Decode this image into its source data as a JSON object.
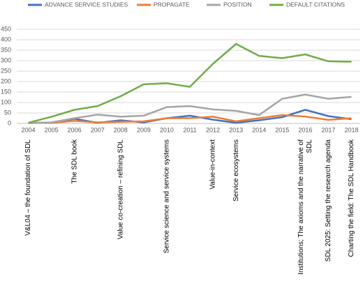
{
  "chart_data": {
    "type": "line",
    "categories": [
      "2004",
      "2005",
      "2006",
      "2007",
      "2008",
      "2009",
      "2010",
      "2011",
      "2012",
      "2013",
      "2014",
      "2015",
      "2016",
      "2017",
      "2018"
    ],
    "series": [
      {
        "name": "ADVANCE SERVICE STUDIES",
        "color": "#4472c4",
        "values": [
          2,
          3,
          22,
          3,
          15,
          5,
          25,
          37,
          18,
          3,
          15,
          30,
          65,
          35,
          20
        ]
      },
      {
        "name": "PROPAGATE",
        "color": "#ed7d31",
        "values": [
          2,
          3,
          12,
          5,
          8,
          10,
          25,
          25,
          32,
          10,
          25,
          40,
          33,
          17,
          25
        ]
      },
      {
        "name": "POSITION",
        "color": "#a5a5a5",
        "values": [
          3,
          5,
          25,
          42,
          32,
          37,
          78,
          83,
          67,
          60,
          40,
          118,
          138,
          118,
          127
        ]
      },
      {
        "name": "DEFAULT CITATIONS",
        "color": "#70ad47",
        "values": [
          3,
          32,
          65,
          83,
          130,
          187,
          192,
          175,
          285,
          380,
          323,
          312,
          330,
          297,
          295
        ]
      }
    ],
    "ylim": [
      0,
      450
    ],
    "yticks": [
      0,
      50,
      100,
      150,
      200,
      250,
      300,
      350,
      400,
      450
    ],
    "grid": true,
    "legend": "top",
    "annotations": [
      {
        "at": "2004",
        "lines": [
          "V&L04 – the foundation of SDL"
        ]
      },
      {
        "at": "2006",
        "lines": [
          "The SDL book"
        ]
      },
      {
        "at": "2008",
        "lines": [
          "Value co-creation – refining SDL"
        ]
      },
      {
        "at": "2010",
        "lines": [
          "Service science and service systems"
        ]
      },
      {
        "at": "2012",
        "lines": [
          "Value-in-context"
        ]
      },
      {
        "at": "2013",
        "lines": [
          "Service ecosystems"
        ]
      },
      {
        "at": "2016",
        "lines": [
          "Institutions; The axioms and the narrative of",
          "SDL"
        ]
      },
      {
        "at": "2017",
        "lines": [
          "SDL 2025: Setting the research agenda"
        ]
      },
      {
        "at": "2018",
        "lines": [
          "Charting the field: The SDL Handbook"
        ]
      }
    ]
  }
}
